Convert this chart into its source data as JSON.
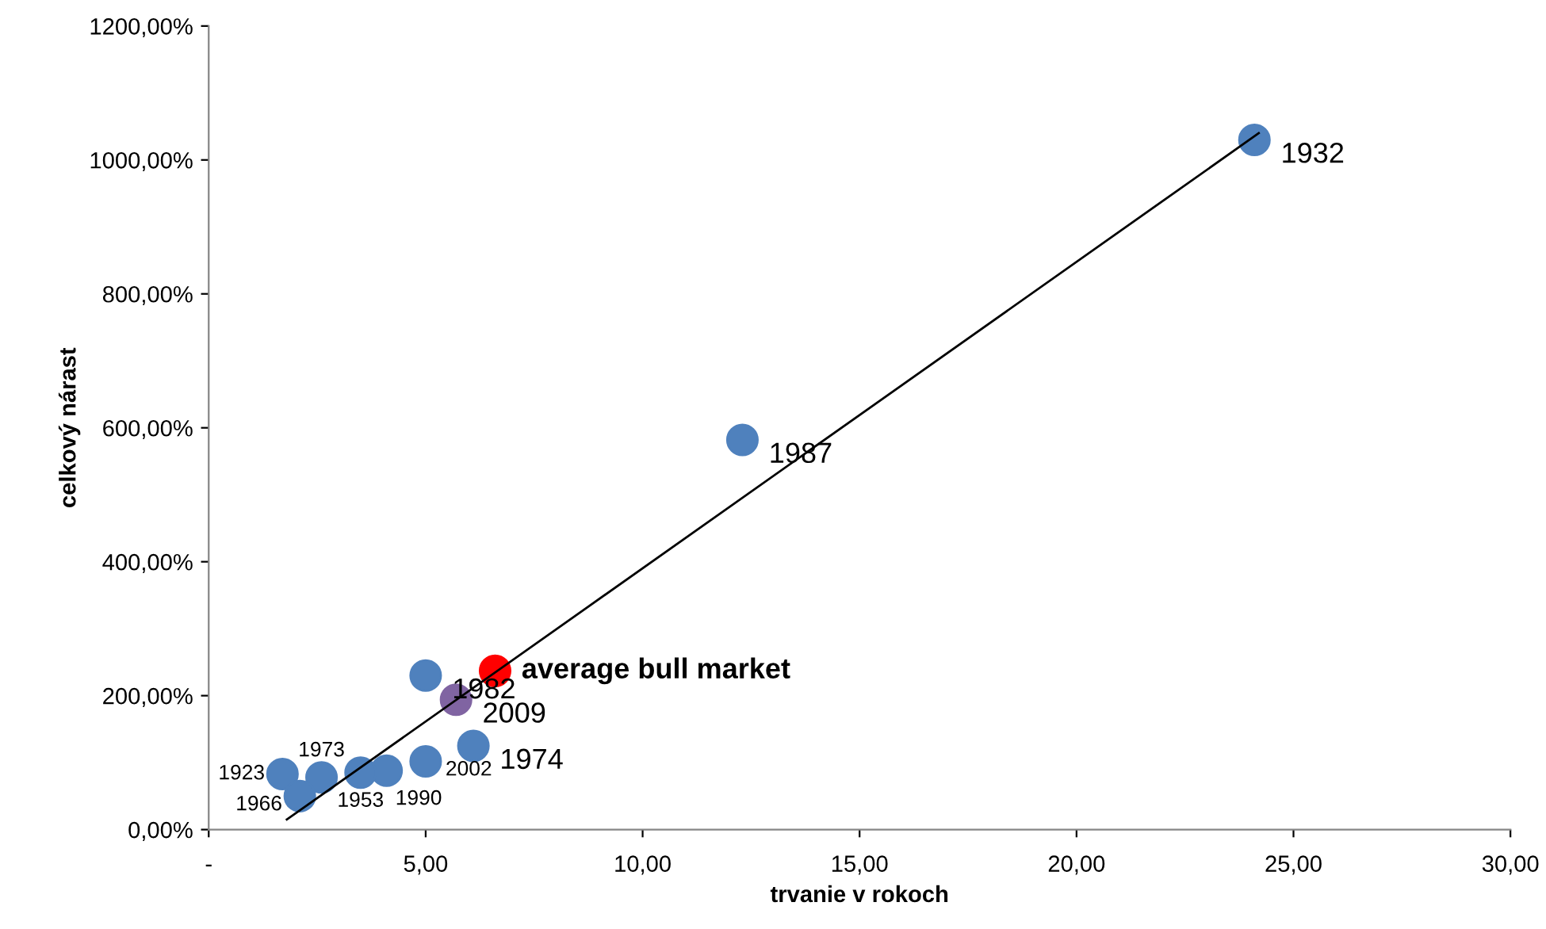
{
  "chart_data": {
    "type": "scatter",
    "xlabel": "trvanie v rokoch",
    "ylabel": "celkový nárast",
    "xlim": [
      0,
      30
    ],
    "ylim": [
      0,
      1200
    ],
    "xticks": [
      {
        "value": 0,
        "label": "-"
      },
      {
        "value": 5,
        "label": "5,00"
      },
      {
        "value": 10,
        "label": "10,00"
      },
      {
        "value": 15,
        "label": "15,00"
      },
      {
        "value": 20,
        "label": "20,00"
      },
      {
        "value": 25,
        "label": "25,00"
      },
      {
        "value": 30,
        "label": "30,00"
      }
    ],
    "yticks": [
      {
        "value": 0,
        "label": "0,00%"
      },
      {
        "value": 200,
        "label": "200,00%"
      },
      {
        "value": 400,
        "label": "400,00%"
      },
      {
        "value": 600,
        "label": "600,00%"
      },
      {
        "value": 800,
        "label": "800,00%"
      },
      {
        "value": 1000,
        "label": "1000,00%"
      },
      {
        "value": 1200,
        "label": "1200,00%"
      }
    ],
    "grid": false,
    "legend": false,
    "marker": "circle",
    "series": [
      {
        "type": "scatter",
        "x": [
          24.1,
          12.3,
          5.0,
          6.1,
          5.0,
          4.1,
          3.5,
          2.6,
          1.7,
          2.1,
          5.7,
          6.6
        ],
        "values": [
          1030,
          582,
          230,
          125,
          102,
          88,
          85,
          78,
          83,
          50,
          194,
          237
        ],
        "colors": [
          "#4f81bd",
          "#4f81bd",
          "#4f81bd",
          "#4f81bd",
          "#4f81bd",
          "#4f81bd",
          "#4f81bd",
          "#4f81bd",
          "#4f81bd",
          "#4f81bd",
          "#8064a2",
          "#ff0000"
        ]
      },
      {
        "type": "line",
        "x": [
          1.8,
          24.2
        ],
        "values": [
          15,
          1040
        ],
        "color": "#000000",
        "line_style": "solid",
        "marker": "none"
      }
    ],
    "annotations": [
      {
        "text": "1932",
        "x": 24.1,
        "y": 1030
      },
      {
        "text": "1987",
        "x": 12.3,
        "y": 582
      },
      {
        "text": "1982",
        "x": 5.0,
        "y": 230
      },
      {
        "text": "1974",
        "x": 6.1,
        "y": 125
      },
      {
        "text": "2002",
        "x": 5.0,
        "y": 102
      },
      {
        "text": "1990",
        "x": 4.1,
        "y": 88
      },
      {
        "text": "1953",
        "x": 3.5,
        "y": 85
      },
      {
        "text": "1973",
        "x": 2.6,
        "y": 78
      },
      {
        "text": "1923",
        "x": 1.7,
        "y": 83
      },
      {
        "text": "1966",
        "x": 2.1,
        "y": 50
      },
      {
        "text": "2009",
        "x": 5.7,
        "y": 194
      },
      {
        "text": "average bull market",
        "x": 6.6,
        "y": 237
      }
    ]
  }
}
